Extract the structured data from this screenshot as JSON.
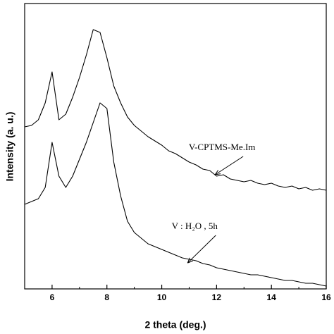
{
  "chart_data": {
    "type": "line",
    "x_label": "2 theta (deg.)",
    "y_label": "Intensity (a. u.)",
    "xlim": [
      5,
      16
    ],
    "ylim": [
      0,
      100
    ],
    "xticks": [
      6,
      8,
      10,
      12,
      14,
      16
    ],
    "xminorticks": [
      5,
      7,
      9,
      11,
      13,
      15
    ],
    "x": [
      5,
      5.25,
      5.5,
      5.75,
      6,
      6.25,
      6.5,
      6.75,
      7,
      7.25,
      7.5,
      7.75,
      8,
      8.25,
      8.5,
      8.75,
      9,
      9.25,
      9.5,
      9.75,
      10,
      10.25,
      10.5,
      10.75,
      11,
      11.25,
      11.5,
      11.75,
      12,
      12.25,
      12.5,
      12.75,
      13,
      13.25,
      13.5,
      13.75,
      14,
      14.25,
      14.5,
      14.75,
      15,
      15.25,
      15.5,
      15.75,
      16
    ],
    "series": [
      {
        "color": "#000000",
        "values": [
          57.5,
          58,
          60,
          66,
          77,
          60,
          62,
          68,
          75,
          83,
          92,
          91,
          82,
          72,
          66,
          61,
          58,
          56,
          54,
          52.5,
          51,
          49,
          48,
          46.5,
          45,
          44,
          42.5,
          42,
          40,
          40.5,
          39,
          38.5,
          38,
          38.5,
          37.5,
          37,
          37.5,
          36.5,
          36,
          36.5,
          35.5,
          36,
          35,
          35.5,
          35
        ]
      },
      {
        "color": "#000000",
        "values": [
          30,
          31,
          32,
          36,
          52,
          40,
          36,
          40,
          46,
          52,
          59,
          66,
          64,
          45,
          33,
          24,
          20,
          18,
          16,
          15,
          14,
          13,
          12,
          11,
          10.5,
          10,
          9,
          8.5,
          7.5,
          7,
          6.5,
          6,
          5.5,
          5,
          5,
          4.5,
          4,
          3.5,
          3,
          3,
          2.5,
          2,
          2,
          1.5,
          1
        ]
      }
    ],
    "annotations": [
      {
        "text": "V-CPTMS-Me.Im",
        "x": 12.2,
        "y": 50,
        "arrow_to": [
          12.2,
          40.5
        ]
      },
      {
        "text": "V : H₂O , 5h",
        "x": 11.2,
        "y": 22,
        "arrow_to": [
          11.2,
          9.2
        ]
      }
    ]
  }
}
